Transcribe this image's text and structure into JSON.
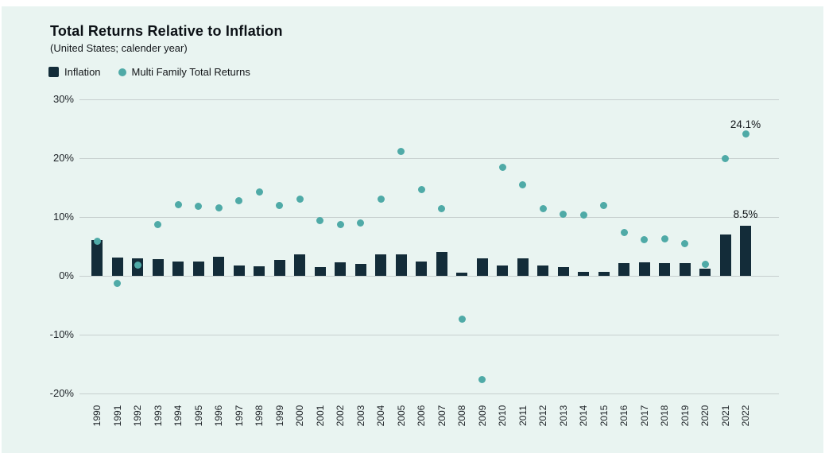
{
  "page": {
    "title": "Total Returns Relative to Inflation",
    "subtitle": "(United States; calender year)"
  },
  "colors": {
    "panel_background": "#e9f4f1",
    "bar": "#132c39",
    "dot": "#4faaa7",
    "gridline": "#c6cfce",
    "text": "#101418"
  },
  "chart_data": {
    "type": "bar",
    "title": "Total Returns Relative to Inflation",
    "subtitle": "(United States; calender year)",
    "categories": [
      "1990",
      "1991",
      "1992",
      "1993",
      "1994",
      "1995",
      "1996",
      "1997",
      "1998",
      "1999",
      "2000",
      "2001",
      "2002",
      "2003",
      "2004",
      "2005",
      "2006",
      "2007",
      "2008",
      "2009",
      "2010",
      "2011",
      "2012",
      "2013",
      "2014",
      "2015",
      "2016",
      "2017",
      "2018",
      "2019",
      "2020",
      "2021",
      "2022"
    ],
    "series": [
      {
        "name": "Inflation",
        "type": "bar",
        "color": "#132c39",
        "values": [
          6.1,
          3.1,
          3.0,
          2.9,
          2.5,
          2.4,
          3.3,
          1.7,
          1.6,
          2.7,
          3.6,
          1.5,
          2.3,
          2.0,
          3.6,
          3.6,
          2.4,
          4.1,
          0.5,
          3.0,
          1.8,
          3.0,
          1.8,
          1.5,
          0.7,
          0.7,
          2.2,
          2.3,
          2.1,
          2.2,
          1.2,
          7.0,
          8.5
        ]
      },
      {
        "name": "Multi Family Total Returns",
        "type": "scatter",
        "color": "#4faaa7",
        "values": [
          5.9,
          -1.3,
          1.8,
          8.7,
          12.1,
          11.8,
          11.6,
          12.8,
          14.3,
          11.9,
          13.0,
          9.4,
          8.7,
          9.0,
          13.1,
          21.1,
          14.6,
          11.4,
          -7.3,
          -17.7,
          18.4,
          15.5,
          11.4,
          10.5,
          10.4,
          12.0,
          7.3,
          6.2,
          6.3,
          5.5,
          2.0,
          20.0,
          24.1
        ]
      }
    ],
    "y_axis": {
      "unit": "%",
      "range": [
        -20,
        30
      ],
      "ticks": [
        {
          "label": "30%",
          "value": 30
        },
        {
          "label": "20%",
          "value": 20
        },
        {
          "label": "10%",
          "value": 10
        },
        {
          "label": "0%",
          "value": 0
        },
        {
          "label": "-10%",
          "value": -10
        },
        {
          "label": "-20%",
          "value": -20
        }
      ]
    },
    "grid": "horizontal",
    "legend_position": "top-left",
    "annotations": [
      {
        "category": "2022",
        "series": "Inflation",
        "text": "8.5%"
      },
      {
        "category": "2022",
        "series": "Multi Family Total Returns",
        "text": "24.1%"
      }
    ]
  }
}
